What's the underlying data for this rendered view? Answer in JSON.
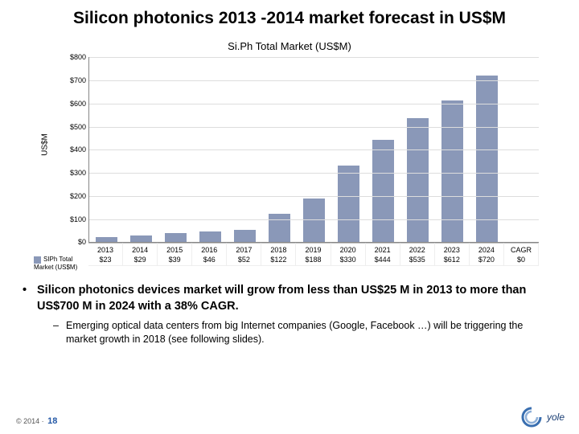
{
  "title": "Silicon photonics 2013 -2014 market forecast in US$M",
  "chart": {
    "type": "bar",
    "title": "Si.Ph Total Market (US$M)",
    "ylabel": "US$M",
    "ylim": [
      0,
      800
    ],
    "ytick_step": 100,
    "yticks": [
      0,
      100,
      200,
      300,
      400,
      500,
      600,
      700,
      800
    ],
    "ytick_labels": [
      "$0",
      "$100",
      "$200",
      "$300",
      "$400",
      "$500",
      "$600",
      "$700",
      "$800"
    ],
    "categories": [
      "2013",
      "2014",
      "2015",
      "2016",
      "2017",
      "2018",
      "2019",
      "2020",
      "2021",
      "2022",
      "2023",
      "2024",
      "CAGR"
    ],
    "series_name": "SIPh Total Market (US$M)",
    "values": [
      23,
      29,
      39,
      46,
      52,
      122,
      188,
      330,
      444,
      535,
      612,
      720,
      0
    ],
    "value_labels": [
      "$23",
      "$29",
      "$39",
      "$46",
      "$52",
      "$122",
      "$188",
      "$330",
      "$444",
      "$535",
      "$612",
      "$720",
      "$0"
    ],
    "bar_color": "#8a98b8",
    "grid_color": "#dddddd",
    "axis_color": "#888888",
    "background_color": "#ffffff",
    "chart_title_fontsize": 13,
    "tick_fontsize": 9,
    "ylabel_fontsize": 10,
    "bar_width_ratio": 0.62
  },
  "bullets": {
    "main": "Silicon photonics devices market will grow from less than US$25 M in 2013 to more than US$700 M in 2024 with a 38% CAGR.",
    "sub": "Emerging optical data centers from big Internet companies (Google, Facebook …) will be triggering the market growth in 2018 (see following slides)."
  },
  "footer": {
    "copyright": "© 2014 ·",
    "page": "18"
  },
  "logo": {
    "brand": "yole",
    "accent_color": "#1a3e74",
    "swirl_color": "#3a6fb0"
  }
}
